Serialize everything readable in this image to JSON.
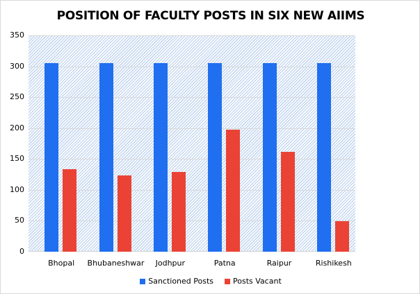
{
  "chart_data": {
    "type": "bar",
    "title": "POSITION OF FACULTY POSTS IN SIX NEW AIIMS",
    "xlabel": "",
    "ylabel": "",
    "categories": [
      "Bhopal",
      "Bhubaneshwar",
      "Jodhpur",
      "Patna",
      "Raipur",
      "Rishikesh"
    ],
    "series": [
      {
        "name": "Sanctioned Posts",
        "color": "#1f6ff0",
        "values": [
          305,
          305,
          305,
          305,
          305,
          305
        ]
      },
      {
        "name": "Posts Vacant",
        "color": "#ea4335",
        "values": [
          134,
          123,
          129,
          198,
          161,
          49
        ]
      }
    ],
    "ylim": [
      0,
      350
    ],
    "yticks": [
      0,
      50,
      100,
      150,
      200,
      250,
      300,
      350
    ],
    "grid": true,
    "legend_position": "bottom"
  },
  "title": "POSITION OF FACULTY POSTS IN SIX NEW AIIMS",
  "legend": [
    {
      "label": "Sanctioned Posts",
      "color": "#1f6ff0"
    },
    {
      "label": "Posts Vacant",
      "color": "#ea4335"
    }
  ]
}
